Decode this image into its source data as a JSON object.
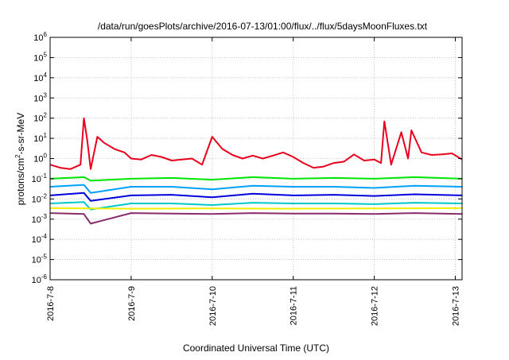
{
  "chart_data": {
    "type": "line",
    "title": "/data/run/goesPlots/archive/2016-07-13/01:00/flux/../flux/5daysMoonFluxes.txt",
    "xlabel": "Coordinated Universal Time (UTC)",
    "ylabel": {
      "prefix": "protons/cm",
      "superscript": "2",
      "suffix": "-s-sr-MeV"
    },
    "y_scale": "log",
    "ylim": [
      1e-06,
      1000000.0
    ],
    "y_ticks": [
      {
        "base": "10",
        "exp": "-6"
      },
      {
        "base": "10",
        "exp": "-5"
      },
      {
        "base": "10",
        "exp": "-4"
      },
      {
        "base": "10",
        "exp": "-3"
      },
      {
        "base": "10",
        "exp": "-2"
      },
      {
        "base": "10",
        "exp": "-1"
      },
      {
        "base": "10",
        "exp": "0"
      },
      {
        "base": "10",
        "exp": "1"
      },
      {
        "base": "10",
        "exp": "2"
      },
      {
        "base": "10",
        "exp": "3"
      },
      {
        "base": "10",
        "exp": "4"
      },
      {
        "base": "10",
        "exp": "5"
      },
      {
        "base": "10",
        "exp": "6"
      }
    ],
    "xlim": [
      "2016-07-08 00:00",
      "2016-07-13 02:00"
    ],
    "x_ticks": [
      "2016-7-8",
      "2016-7-9",
      "2016-7-10",
      "2016-7-11",
      "2016-7-12",
      "2016-7-13"
    ],
    "grid": true,
    "series": [
      {
        "color": "#e8001c",
        "x": [
          "2016-07-08 00:00",
          "2016-07-08 03:00",
          "2016-07-08 06:00",
          "2016-07-08 09:00",
          "2016-07-08 10:00",
          "2016-07-08 11:00",
          "2016-07-08 12:00",
          "2016-07-08 14:00",
          "2016-07-08 16:00",
          "2016-07-08 19:00",
          "2016-07-08 22:00",
          "2016-07-09 00:00",
          "2016-07-09 03:00",
          "2016-07-09 06:00",
          "2016-07-09 09:00",
          "2016-07-09 12:00",
          "2016-07-09 15:00",
          "2016-07-09 18:00",
          "2016-07-09 21:00",
          "2016-07-10 00:00",
          "2016-07-10 03:00",
          "2016-07-10 06:00",
          "2016-07-10 09:00",
          "2016-07-10 12:00",
          "2016-07-10 15:00",
          "2016-07-10 18:00",
          "2016-07-10 21:00",
          "2016-07-11 00:00",
          "2016-07-11 03:00",
          "2016-07-11 06:00",
          "2016-07-11 09:00",
          "2016-07-11 12:00",
          "2016-07-11 15:00",
          "2016-07-11 18:00",
          "2016-07-11 21:00",
          "2016-07-12 00:00",
          "2016-07-12 02:00",
          "2016-07-12 03:00",
          "2016-07-12 05:00",
          "2016-07-12 08:00",
          "2016-07-12 10:00",
          "2016-07-12 11:00",
          "2016-07-12 14:00",
          "2016-07-12 17:00",
          "2016-07-12 20:00",
          "2016-07-12 23:00",
          "2016-07-13 02:00"
        ],
        "y": [
          0.5,
          0.35,
          0.3,
          0.5,
          100,
          8,
          0.3,
          12,
          6,
          3,
          2,
          1,
          0.9,
          1.5,
          1.2,
          0.8,
          0.9,
          1,
          0.5,
          12,
          3,
          1.5,
          1,
          1.4,
          1,
          1.4,
          2,
          1.2,
          0.6,
          0.35,
          0.4,
          0.6,
          0.7,
          1.6,
          0.8,
          0.9,
          0.6,
          70,
          0.5,
          20,
          1,
          25,
          2,
          1.5,
          1.6,
          1.8,
          0.9
        ]
      },
      {
        "color": "#00e600",
        "x": [
          "2016-07-08 00:00",
          "2016-07-08 10:00",
          "2016-07-08 12:00",
          "2016-07-09 00:00",
          "2016-07-09 12:00",
          "2016-07-10 00:00",
          "2016-07-10 12:00",
          "2016-07-11 00:00",
          "2016-07-11 12:00",
          "2016-07-12 00:00",
          "2016-07-12 12:00",
          "2016-07-13 02:00"
        ],
        "y": [
          0.1,
          0.12,
          0.08,
          0.1,
          0.11,
          0.09,
          0.12,
          0.1,
          0.11,
          0.1,
          0.12,
          0.1
        ]
      },
      {
        "color": "#00a0ff",
        "x": [
          "2016-07-08 00:00",
          "2016-07-08 10:00",
          "2016-07-08 12:00",
          "2016-07-09 00:00",
          "2016-07-09 12:00",
          "2016-07-10 00:00",
          "2016-07-10 12:00",
          "2016-07-11 00:00",
          "2016-07-11 12:00",
          "2016-07-12 00:00",
          "2016-07-12 12:00",
          "2016-07-13 02:00"
        ],
        "y": [
          0.04,
          0.05,
          0.02,
          0.04,
          0.04,
          0.03,
          0.045,
          0.04,
          0.04,
          0.035,
          0.045,
          0.04
        ]
      },
      {
        "color": "#0000dd",
        "x": [
          "2016-07-08 00:00",
          "2016-07-08 10:00",
          "2016-07-08 12:00",
          "2016-07-09 00:00",
          "2016-07-09 12:00",
          "2016-07-10 00:00",
          "2016-07-10 12:00",
          "2016-07-11 00:00",
          "2016-07-11 12:00",
          "2016-07-12 00:00",
          "2016-07-12 12:00",
          "2016-07-13 02:00"
        ],
        "y": [
          0.015,
          0.02,
          0.008,
          0.015,
          0.016,
          0.012,
          0.018,
          0.015,
          0.016,
          0.014,
          0.017,
          0.015
        ]
      },
      {
        "color": "#00c8c8",
        "x": [
          "2016-07-08 00:00",
          "2016-07-08 10:00",
          "2016-07-08 12:00",
          "2016-07-09 00:00",
          "2016-07-09 12:00",
          "2016-07-10 00:00",
          "2016-07-10 12:00",
          "2016-07-11 00:00",
          "2016-07-11 12:00",
          "2016-07-12 00:00",
          "2016-07-12 12:00",
          "2016-07-13 02:00"
        ],
        "y": [
          0.006,
          0.007,
          0.003,
          0.006,
          0.006,
          0.005,
          0.0065,
          0.006,
          0.006,
          0.0055,
          0.0065,
          0.006
        ]
      },
      {
        "color": "#f0f000",
        "x": [
          "2016-07-08 00:00",
          "2016-07-09 00:00",
          "2016-07-10 00:00",
          "2016-07-11 00:00",
          "2016-07-12 00:00",
          "2016-07-13 02:00"
        ],
        "y": [
          0.0035,
          0.0033,
          0.0034,
          0.0033,
          0.0034,
          0.0035
        ]
      },
      {
        "color": "#8b2b6b",
        "x": [
          "2016-07-08 00:00",
          "2016-07-08 10:00",
          "2016-07-08 12:00",
          "2016-07-09 00:00",
          "2016-07-09 12:00",
          "2016-07-10 00:00",
          "2016-07-10 12:00",
          "2016-07-11 00:00",
          "2016-07-11 12:00",
          "2016-07-12 00:00",
          "2016-07-12 12:00",
          "2016-07-13 02:00"
        ],
        "y": [
          0.002,
          0.0018,
          0.0006,
          0.002,
          0.0019,
          0.0018,
          0.002,
          0.0019,
          0.0019,
          0.0018,
          0.002,
          0.0018
        ]
      }
    ]
  }
}
